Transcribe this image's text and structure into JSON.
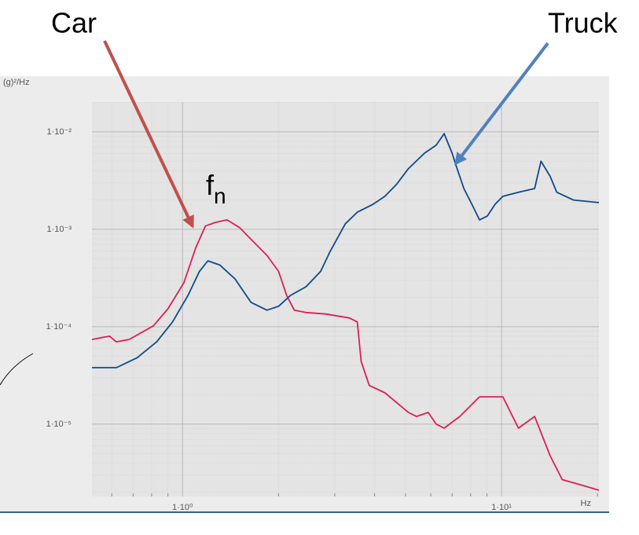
{
  "chart_data": {
    "type": "line",
    "y_label": "(g)²/Hz",
    "x_label": "Hz",
    "log_x": true,
    "log_y": true,
    "grid": true,
    "minor_grid": true,
    "xlim": [
      0.52,
      20.2
    ],
    "ylim": [
      1.81e-06,
      0.0202
    ],
    "xticks": [
      {
        "value": 1,
        "label": "1·10⁰"
      },
      {
        "value": 10,
        "label": "1·10¹"
      }
    ],
    "yticks": [
      {
        "value": 0.01,
        "label": "1·10⁻²"
      },
      {
        "value": 0.001,
        "label": "1·10⁻³"
      },
      {
        "value": 0.0001,
        "label": "1·10⁻⁴"
      },
      {
        "value": 1e-05,
        "label": "1·10⁻⁵"
      }
    ],
    "series": [
      {
        "name": "Car",
        "color": "#dc1e55",
        "x": [
          0.52,
          0.59,
          0.62,
          0.68,
          0.81,
          0.9,
          1.01,
          1.1,
          1.18,
          1.27,
          1.38,
          1.51,
          1.64,
          1.84,
          2.0,
          2.12,
          2.24,
          2.44,
          2.81,
          3.34,
          3.53,
          3.63,
          3.85,
          4.31,
          5.11,
          5.41,
          5.89,
          6.24,
          6.61,
          7.4,
          8.53,
          10.1,
          11.3,
          12.7,
          14.2,
          15.5,
          18.4,
          20.2
        ],
        "values": [
          7.4e-05,
          8e-05,
          7e-05,
          7.4e-05,
          0.000102,
          0.000153,
          0.000283,
          0.00065,
          0.00108,
          0.00118,
          0.00125,
          0.00104,
          0.00079,
          0.00054,
          0.00037,
          0.00021,
          0.000148,
          0.00014,
          0.000135,
          0.000123,
          0.000112,
          4.4e-05,
          2.5e-05,
          2.1e-05,
          1.32e-05,
          1.2e-05,
          1.32e-05,
          1e-05,
          9.1e-06,
          1.2e-05,
          1.91e-05,
          1.91e-05,
          9.1e-06,
          1.2e-05,
          4.75e-06,
          2.7e-06,
          2.3e-06,
          2.1e-06
        ]
      },
      {
        "name": "Truck",
        "color": "#0f4a88",
        "x": [
          0.52,
          0.62,
          0.72,
          0.83,
          0.93,
          1.04,
          1.13,
          1.2,
          1.31,
          1.46,
          1.64,
          1.84,
          2.0,
          2.18,
          2.44,
          2.71,
          2.9,
          3.24,
          3.53,
          3.96,
          4.31,
          4.68,
          5.11,
          5.74,
          6.24,
          6.61,
          7.0,
          7.19,
          7.62,
          8.07,
          8.53,
          9.03,
          9.55,
          10.1,
          11.3,
          12.7,
          13.3,
          14.2,
          14.9,
          16.8,
          20.2
        ],
        "values": [
          3.8e-05,
          3.8e-05,
          4.8e-05,
          7e-05,
          0.000112,
          0.00021,
          0.00037,
          0.000475,
          0.00043,
          0.00031,
          0.000178,
          0.000148,
          0.000162,
          0.00021,
          0.000258,
          0.00037,
          0.00059,
          0.00114,
          0.0015,
          0.00181,
          0.00218,
          0.00288,
          0.0042,
          0.00605,
          0.0073,
          0.0096,
          0.00605,
          0.0046,
          0.00262,
          0.00181,
          0.00125,
          0.00137,
          0.00181,
          0.00218,
          0.0024,
          0.00262,
          0.005,
          0.0035,
          0.0024,
          0.002,
          0.00188
        ]
      }
    ],
    "annotations": [
      {
        "text": "Car",
        "color": "#c0504d"
      },
      {
        "text": "Truck",
        "color": "#4f81bd"
      },
      {
        "text": "f",
        "subscript": "n"
      }
    ]
  }
}
